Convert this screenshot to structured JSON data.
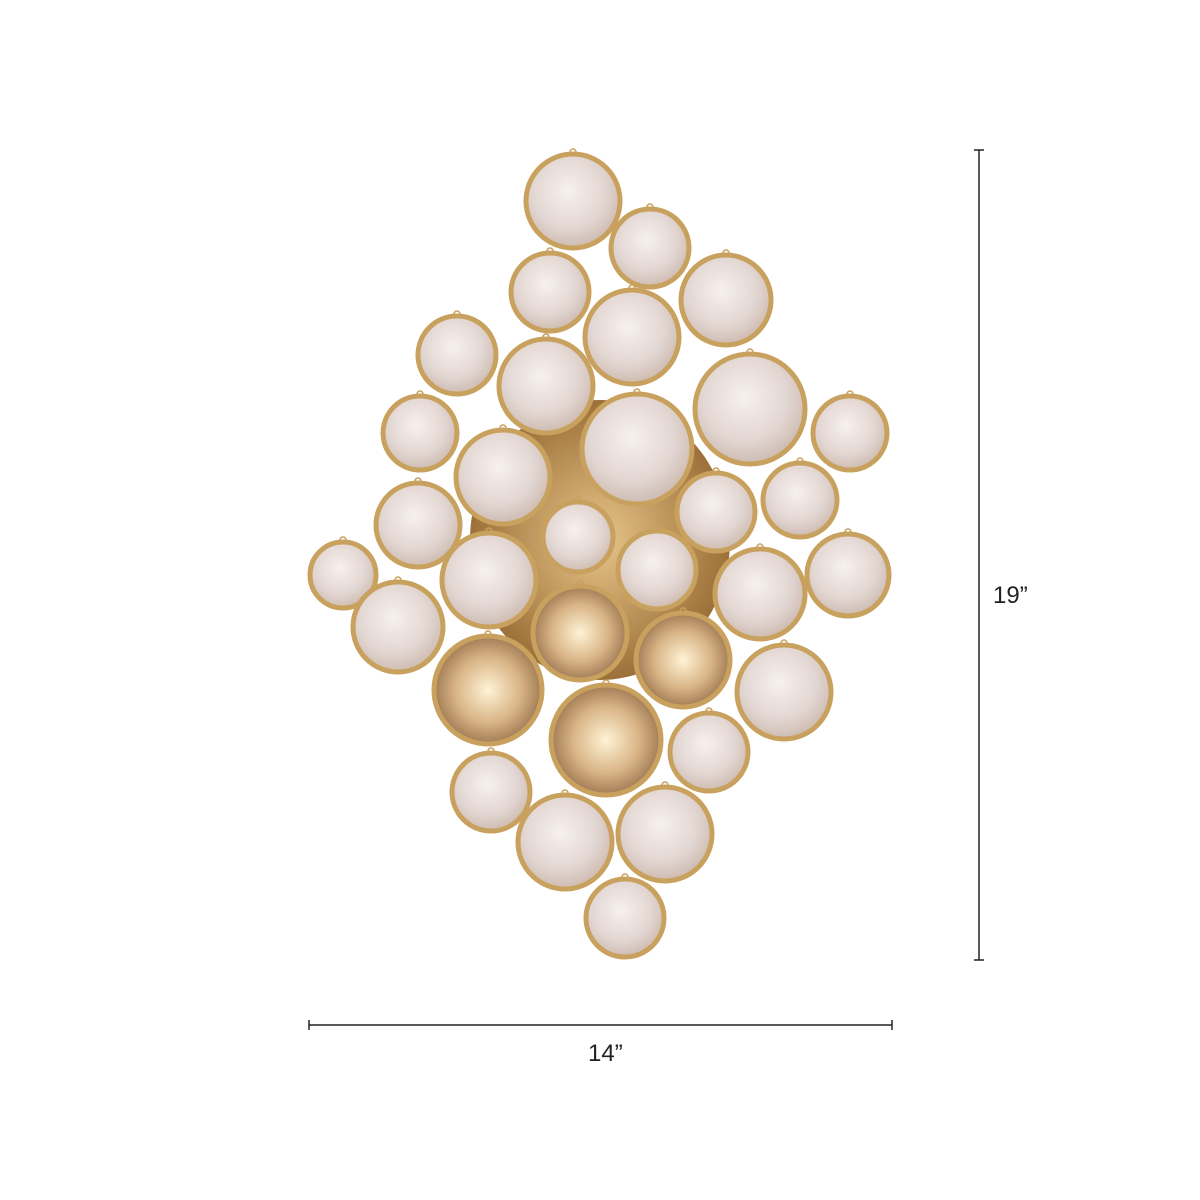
{
  "product": {
    "type": "wall sconce",
    "colors": {
      "ring": "#c9a15e",
      "glass": "#e6dcd6",
      "plate": "#b8894a",
      "dimension_line": "#222222"
    }
  },
  "dimensions": {
    "height_label": "19”",
    "width_label": "14”"
  }
}
